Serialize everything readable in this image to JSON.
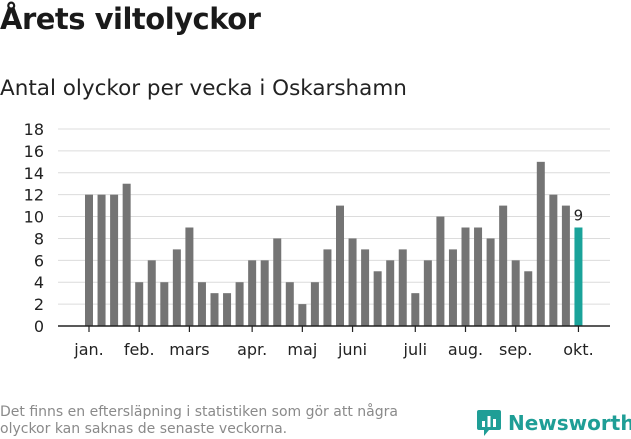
{
  "header": {
    "title": "Årets viltolyckor",
    "subtitle": "Antal olyckor per vecka i Oskarshamn"
  },
  "footer": {
    "note": "Det finns en eftersläpning i statistiken som gör att några olyckor kan saknas de senaste veckorna.",
    "brand": "Newsworthy"
  },
  "colors": {
    "bar": "#747474",
    "highlight": "#1aa39a",
    "grid": "#dcdcdc",
    "axis": "#222222",
    "brand": "#1f9e96"
  },
  "chart_data": {
    "type": "bar",
    "title": "Årets viltolyckor",
    "subtitle": "Antal olyckor per vecka i Oskarshamn",
    "values": [
      12,
      12,
      12,
      13,
      4,
      6,
      4,
      7,
      9,
      4,
      3,
      3,
      4,
      6,
      6,
      8,
      4,
      2,
      4,
      7,
      11,
      8,
      7,
      5,
      6,
      7,
      3,
      6,
      10,
      7,
      9,
      9,
      8,
      11,
      6,
      5,
      15,
      12,
      11,
      9
    ],
    "highlight_last": true,
    "highlight_label": "9",
    "ylim": [
      0,
      18
    ],
    "yticks": [
      0,
      2,
      4,
      6,
      8,
      10,
      12,
      14,
      16,
      18
    ],
    "month_labels": [
      {
        "label": "jan.",
        "bar_index": 0
      },
      {
        "label": "feb.",
        "bar_index": 4
      },
      {
        "label": "mars",
        "bar_index": 8
      },
      {
        "label": "apr.",
        "bar_index": 13
      },
      {
        "label": "maj",
        "bar_index": 17
      },
      {
        "label": "juni",
        "bar_index": 21
      },
      {
        "label": "juli",
        "bar_index": 26
      },
      {
        "label": "aug.",
        "bar_index": 30
      },
      {
        "label": "sep.",
        "bar_index": 34
      },
      {
        "label": "okt.",
        "bar_index": 39
      }
    ],
    "grid": true,
    "xlabel": "",
    "ylabel": ""
  }
}
